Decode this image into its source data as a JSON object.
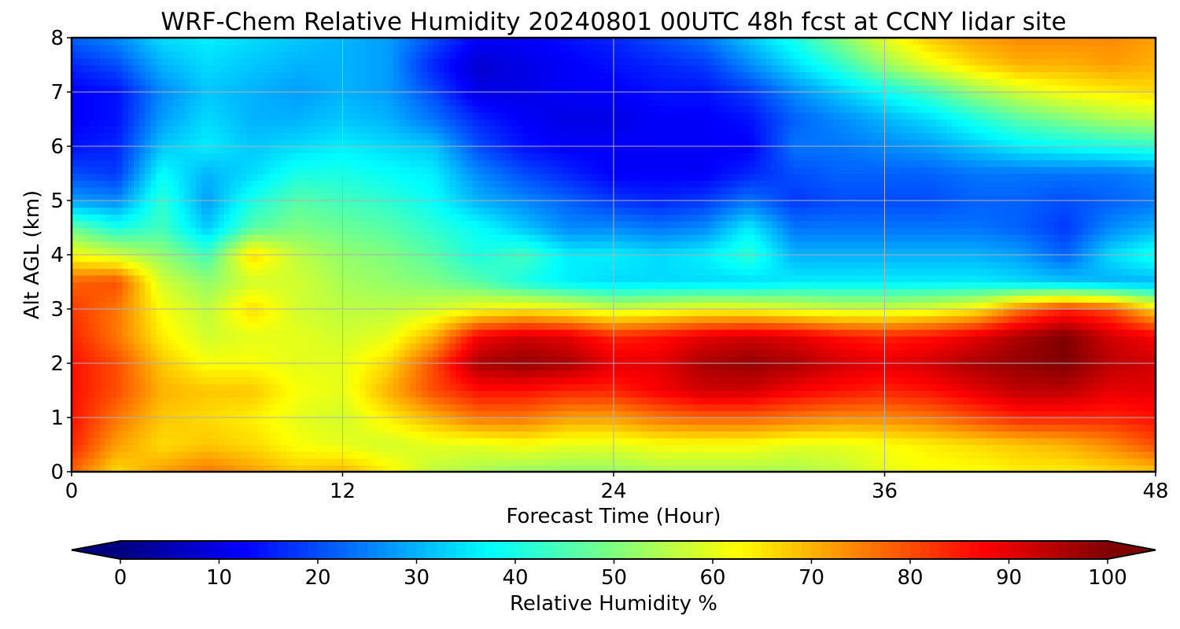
{
  "chart_data": {
    "type": "heatmap",
    "title": "WRF-Chem Relative Humidity 20240801 00UTC 48h fcst at CCNY lidar site",
    "xlabel": "Forecast Time (Hour)",
    "ylabel": "Alt AGL (km)",
    "xlim": [
      0,
      48
    ],
    "ylim": [
      0,
      8
    ],
    "xticks": [
      0,
      12,
      24,
      36,
      48
    ],
    "xtick_labels": [
      "0",
      "12",
      "24",
      "36",
      "48"
    ],
    "yticks": [
      0,
      1,
      2,
      3,
      4,
      5,
      6,
      7,
      8
    ],
    "ytick_labels": [
      "0",
      "1",
      "2",
      "3",
      "4",
      "5",
      "6",
      "7",
      "8"
    ],
    "grid": true,
    "colormap": "jet",
    "colorbar": {
      "label": "Relative Humidity %",
      "range": [
        0,
        100
      ],
      "ticks": [
        0,
        10,
        20,
        30,
        40,
        50,
        60,
        70,
        80,
        90,
        100
      ],
      "tick_labels": [
        "0",
        "10",
        "20",
        "30",
        "40",
        "50",
        "60",
        "70",
        "80",
        "90",
        "100"
      ],
      "extend": "both",
      "orientation": "horizontal"
    },
    "x": [
      0,
      2,
      4,
      6,
      8,
      10,
      12,
      14,
      16,
      18,
      20,
      22,
      24,
      26,
      28,
      30,
      32,
      34,
      36,
      38,
      40,
      42,
      44,
      46,
      48
    ],
    "y": [
      0,
      0.5,
      1,
      1.5,
      2,
      2.5,
      3,
      3.5,
      4,
      4.5,
      5,
      5.5,
      6,
      6.5,
      7,
      7.5,
      8
    ],
    "z": [
      [
        78,
        66,
        72,
        76,
        72,
        68,
        70,
        64,
        56,
        54,
        52,
        52,
        52,
        54,
        54,
        54,
        54,
        56,
        60,
        62,
        62,
        64,
        64,
        66,
        68
      ],
      [
        84,
        72,
        66,
        68,
        66,
        62,
        60,
        58,
        60,
        60,
        62,
        60,
        60,
        62,
        62,
        62,
        60,
        60,
        62,
        64,
        66,
        68,
        70,
        74,
        80
      ],
      [
        86,
        76,
        68,
        66,
        64,
        60,
        58,
        64,
        70,
        76,
        76,
        72,
        72,
        76,
        78,
        78,
        76,
        74,
        74,
        76,
        80,
        84,
        84,
        84,
        86
      ],
      [
        86,
        80,
        70,
        68,
        68,
        62,
        60,
        70,
        80,
        86,
        86,
        84,
        84,
        88,
        92,
        92,
        88,
        86,
        84,
        86,
        90,
        94,
        94,
        90,
        90
      ],
      [
        86,
        80,
        68,
        62,
        62,
        60,
        60,
        66,
        80,
        96,
        98,
        96,
        90,
        90,
        96,
        98,
        96,
        92,
        90,
        92,
        96,
        98,
        100,
        94,
        92
      ],
      [
        84,
        76,
        64,
        58,
        60,
        60,
        58,
        60,
        70,
        88,
        92,
        90,
        84,
        86,
        90,
        92,
        90,
        86,
        84,
        86,
        90,
        96,
        100,
        92,
        88
      ],
      [
        82,
        76,
        62,
        56,
        66,
        58,
        56,
        56,
        58,
        62,
        64,
        62,
        58,
        60,
        62,
        62,
        60,
        58,
        58,
        60,
        64,
        76,
        84,
        80,
        66
      ],
      [
        78,
        80,
        58,
        52,
        58,
        58,
        54,
        52,
        50,
        46,
        40,
        36,
        34,
        34,
        34,
        34,
        36,
        36,
        36,
        36,
        36,
        34,
        32,
        30,
        30
      ],
      [
        62,
        58,
        52,
        44,
        66,
        56,
        52,
        50,
        46,
        40,
        44,
        36,
        36,
        34,
        36,
        42,
        30,
        30,
        30,
        30,
        30,
        28,
        22,
        34,
        40
      ],
      [
        48,
        40,
        44,
        32,
        46,
        50,
        48,
        46,
        42,
        38,
        32,
        26,
        26,
        24,
        26,
        36,
        24,
        24,
        24,
        24,
        24,
        22,
        18,
        26,
        30
      ],
      [
        28,
        26,
        42,
        28,
        40,
        46,
        44,
        42,
        38,
        30,
        26,
        22,
        18,
        16,
        18,
        24,
        18,
        20,
        20,
        20,
        22,
        22,
        20,
        22,
        24
      ],
      [
        20,
        18,
        38,
        30,
        34,
        40,
        40,
        38,
        36,
        26,
        20,
        16,
        12,
        12,
        12,
        16,
        20,
        22,
        22,
        22,
        24,
        24,
        24,
        24,
        26
      ],
      [
        14,
        16,
        32,
        36,
        32,
        34,
        36,
        34,
        32,
        20,
        14,
        12,
        12,
        12,
        12,
        12,
        24,
        24,
        26,
        28,
        32,
        36,
        38,
        40,
        42
      ],
      [
        12,
        14,
        28,
        34,
        30,
        30,
        32,
        30,
        24,
        16,
        12,
        10,
        10,
        12,
        12,
        14,
        22,
        26,
        30,
        34,
        40,
        46,
        50,
        54,
        56
      ],
      [
        12,
        14,
        26,
        32,
        30,
        28,
        30,
        28,
        20,
        10,
        10,
        12,
        12,
        14,
        14,
        18,
        26,
        32,
        38,
        44,
        52,
        58,
        62,
        64,
        66
      ],
      [
        16,
        20,
        30,
        34,
        32,
        30,
        30,
        28,
        16,
        8,
        10,
        12,
        14,
        16,
        18,
        26,
        34,
        42,
        52,
        60,
        66,
        70,
        70,
        72,
        70
      ],
      [
        22,
        26,
        34,
        36,
        34,
        32,
        30,
        28,
        20,
        12,
        12,
        14,
        16,
        20,
        24,
        32,
        40,
        50,
        60,
        68,
        72,
        74,
        74,
        74,
        72
      ]
    ]
  }
}
